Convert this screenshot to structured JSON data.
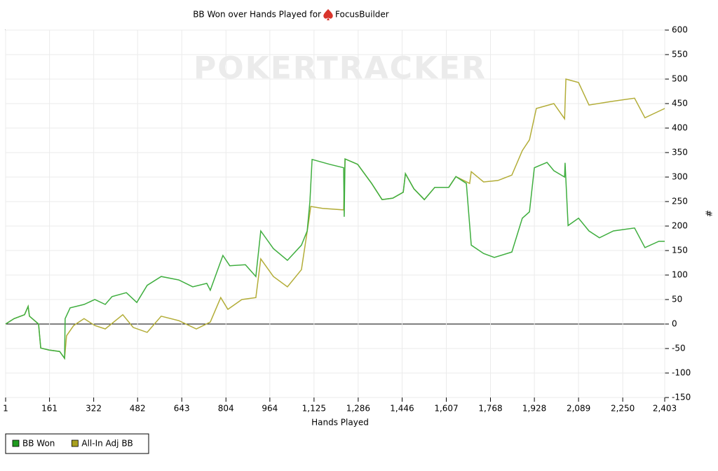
{
  "chart_data": {
    "type": "line",
    "title": "BB Won over Hands Played for",
    "player": "FocusBuilder",
    "watermark": "POKERTRACKER",
    "x_label": "Hands Played",
    "y_label": "#",
    "xlim": [
      1,
      2403
    ],
    "ylim": [
      -150,
      600
    ],
    "xticks": [
      1,
      161,
      322,
      482,
      643,
      804,
      964,
      {
        "value": 1125,
        "label": "1,125"
      },
      {
        "value": 1286,
        "label": "1,286"
      },
      {
        "value": 1446,
        "label": "1,446"
      },
      {
        "value": 1607,
        "label": "1,607"
      },
      {
        "value": 1768,
        "label": "1,768"
      },
      {
        "value": 1928,
        "label": "1,928"
      },
      {
        "value": 2089,
        "label": "2,089"
      },
      {
        "value": 2250,
        "label": "2,250"
      },
      {
        "value": 2403,
        "label": "2,403"
      }
    ],
    "yticks": [
      -150,
      -100,
      -50,
      0,
      50,
      100,
      150,
      200,
      250,
      300,
      350,
      400,
      450,
      500,
      550,
      600
    ],
    "grid": true,
    "y_axis_side": "right",
    "legend": "bottom-left",
    "series": [
      {
        "name": "All-In Adj BB",
        "color": "#b3ad38",
        "legend_color": "#a8a020",
        "x": [
          1,
          32,
          70,
          83,
          88,
          121,
          129,
          159,
          198,
          216,
          223,
          249,
          287,
          326,
          364,
          428,
          466,
          517,
          568,
          632,
          696,
          747,
          785,
          811,
          862,
          913,
          931,
          977,
          1028,
          1079,
          1105,
          1113,
          1156,
          1233,
          1238,
          1284,
          1335,
          1373,
          1412,
          1450,
          1458,
          1489,
          1527,
          1565,
          1616,
          1642,
          1692,
          1698,
          1743,
          1795,
          1846,
          1884,
          1910,
          1935,
          1999,
          2038,
          2043,
          2089,
          2127,
          2204,
          2293,
          2331,
          2403
        ],
        "values": [
          0,
          11,
          19,
          36,
          16,
          0,
          -49,
          -53,
          -56,
          -70,
          -24,
          -3,
          11,
          -3,
          -10,
          19,
          -7,
          -17,
          16,
          7,
          -10,
          4,
          54,
          30,
          50,
          54,
          133,
          97,
          76,
          111,
          207,
          240,
          236,
          233,
          337,
          326,
          287,
          254,
          257,
          269,
          307,
          276,
          254,
          279,
          279,
          301,
          287,
          311,
          290,
          293,
          304,
          354,
          376,
          440,
          450,
          419,
          500,
          493,
          447,
          454,
          461,
          421,
          440
        ]
      },
      {
        "name": "BB Won",
        "color": "#3fae3f",
        "legend_color": "#1f9a1f",
        "x": [
          1,
          32,
          70,
          83,
          88,
          121,
          129,
          159,
          198,
          216,
          218,
          236,
          287,
          326,
          364,
          389,
          441,
          479,
          517,
          568,
          632,
          683,
          734,
          747,
          793,
          818,
          875,
          913,
          931,
          977,
          1028,
          1079,
          1100,
          1110,
          1118,
          1182,
          1233,
          1235,
          1238,
          1284,
          1335,
          1373,
          1412,
          1450,
          1458,
          1489,
          1527,
          1565,
          1616,
          1642,
          1680,
          1698,
          1743,
          1782,
          1846,
          1884,
          1910,
          1928,
          1974,
          1999,
          2038,
          2040,
          2051,
          2089,
          2127,
          2165,
          2216,
          2293,
          2331,
          2382,
          2403
        ],
        "values": [
          0,
          11,
          19,
          36,
          16,
          0,
          -49,
          -53,
          -56,
          -70,
          11,
          33,
          40,
          50,
          40,
          56,
          64,
          44,
          79,
          97,
          90,
          76,
          83,
          69,
          140,
          119,
          121,
          97,
          190,
          154,
          130,
          161,
          190,
          250,
          336,
          326,
          319,
          219,
          337,
          326,
          287,
          254,
          257,
          269,
          307,
          276,
          254,
          279,
          279,
          301,
          287,
          161,
          144,
          136,
          147,
          216,
          229,
          319,
          330,
          313,
          300,
          329,
          201,
          216,
          190,
          176,
          190,
          196,
          156,
          169,
          169
        ]
      }
    ]
  }
}
